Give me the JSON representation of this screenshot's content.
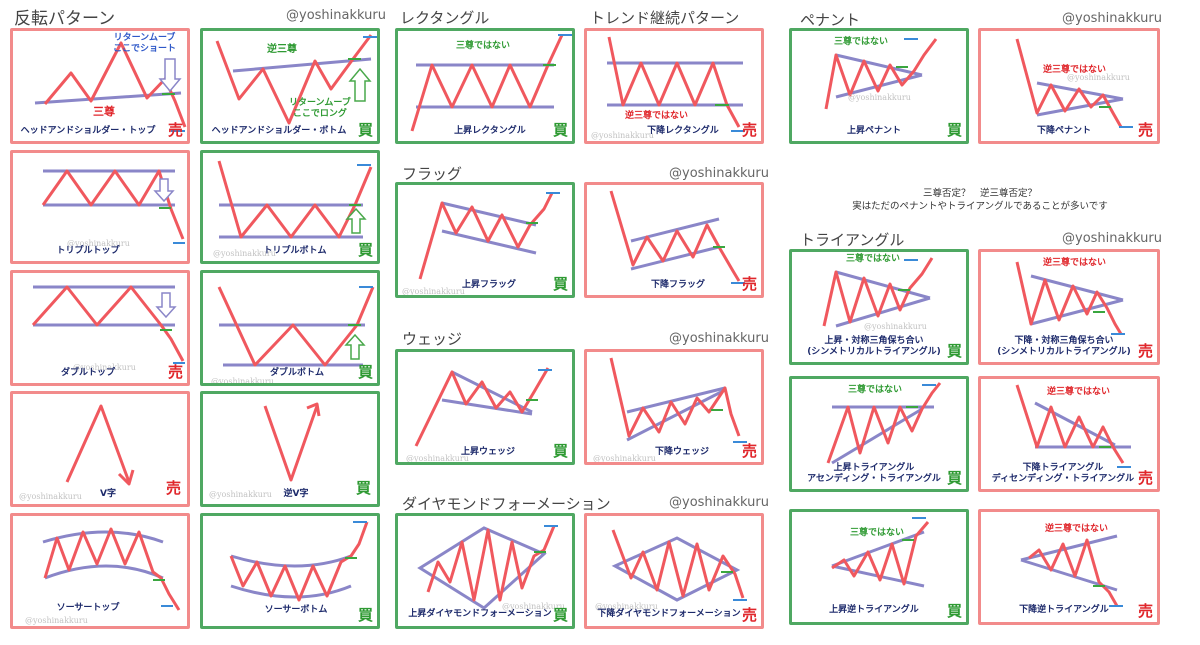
{
  "sections": {
    "reversal": "反転パターン",
    "rectangle": "レクタングル",
    "continuation": "トレンド継続パターン",
    "flag": "フラッグ",
    "wedge": "ウェッジ",
    "diamond": "ダイヤモンドフォーメーション",
    "pennant": "ペナント",
    "triangle": "トライアングル"
  },
  "handles": {
    "h1": "@yoshinakkuru",
    "h2": "@yoshinakkuru",
    "h3": "@yoshinakkuru",
    "h4": "@yoshinakkuru",
    "h5": "@yoshinakkuru",
    "h6": "@yoshinakkuru"
  },
  "note": {
    "line1": "三尊否定？　逆三尊否定？",
    "line2": "実はただのペナントやトライアングルであることが多いです"
  },
  "signals": {
    "sell": "売",
    "buy": "買"
  },
  "watermark": "@yoshinakkuru",
  "colors": {
    "sell_border": "#f28b8b",
    "buy_border": "#4fa862",
    "price_line": "#f0585e",
    "trend_line": "#8a86c8",
    "label_text": "#1d2a6b"
  },
  "patterns": {
    "hs_top": {
      "name": "ヘッドアンドショルダー・トップ",
      "ann1": "リターンムーブ\nここでショート",
      "ann2": "三尊"
    },
    "hs_bottom": {
      "name": "ヘッドアンドショルダー・ボトム",
      "ann1": "逆三尊",
      "ann2": "リターンムーブ\nここでロング"
    },
    "triple_top": {
      "name": "トリプルトップ"
    },
    "triple_bottom": {
      "name": "トリプルボトム"
    },
    "double_top": {
      "name": "ダブルトップ"
    },
    "double_bottom": {
      "name": "ダブルボトム"
    },
    "v_top": {
      "name": "V字"
    },
    "v_bottom": {
      "name": "逆V字"
    },
    "saucer_top": {
      "name": "ソーサートップ"
    },
    "saucer_bottom": {
      "name": "ソーサーボトム"
    },
    "rect_up": {
      "name": "上昇レクタングル",
      "ann1": "三尊ではない"
    },
    "rect_down": {
      "name": "下降レクタングル",
      "ann1": "逆三尊ではない"
    },
    "flag_up": {
      "name": "上昇フラッグ"
    },
    "flag_down": {
      "name": "下降フラッグ"
    },
    "wedge_up": {
      "name": "上昇ウェッジ"
    },
    "wedge_down": {
      "name": "下降ウェッジ"
    },
    "diamond_up": {
      "name": "上昇ダイヤモンドフォーメーション"
    },
    "diamond_down": {
      "name": "下降ダイヤモンドフォーメーション"
    },
    "pennant_up": {
      "name": "上昇ペナント",
      "ann1": "三尊ではない"
    },
    "pennant_down": {
      "name": "下降ペナント",
      "ann1": "逆三尊ではない"
    },
    "sym_up": {
      "name": "上昇・対称三角保ち合い\n(シンメトリカルトライアングル)",
      "ann1": "三尊ではない"
    },
    "sym_down": {
      "name": "下降・対称三角保ち合い\n(シンメトリカルトライアングル)",
      "ann1": "逆三尊ではない"
    },
    "asc": {
      "name": "上昇トライアングル\nアセンディング・トライアングル",
      "ann1": "三尊ではない"
    },
    "desc": {
      "name": "下降トライアングル\nディセンディング・トライアングル",
      "ann1": "逆三尊ではない"
    },
    "rev_asc": {
      "name": "上昇逆トライアングル",
      "ann1": "三尊ではない"
    },
    "rev_desc": {
      "name": "下降逆トライアングル",
      "ann1": "逆三尊ではない"
    }
  }
}
